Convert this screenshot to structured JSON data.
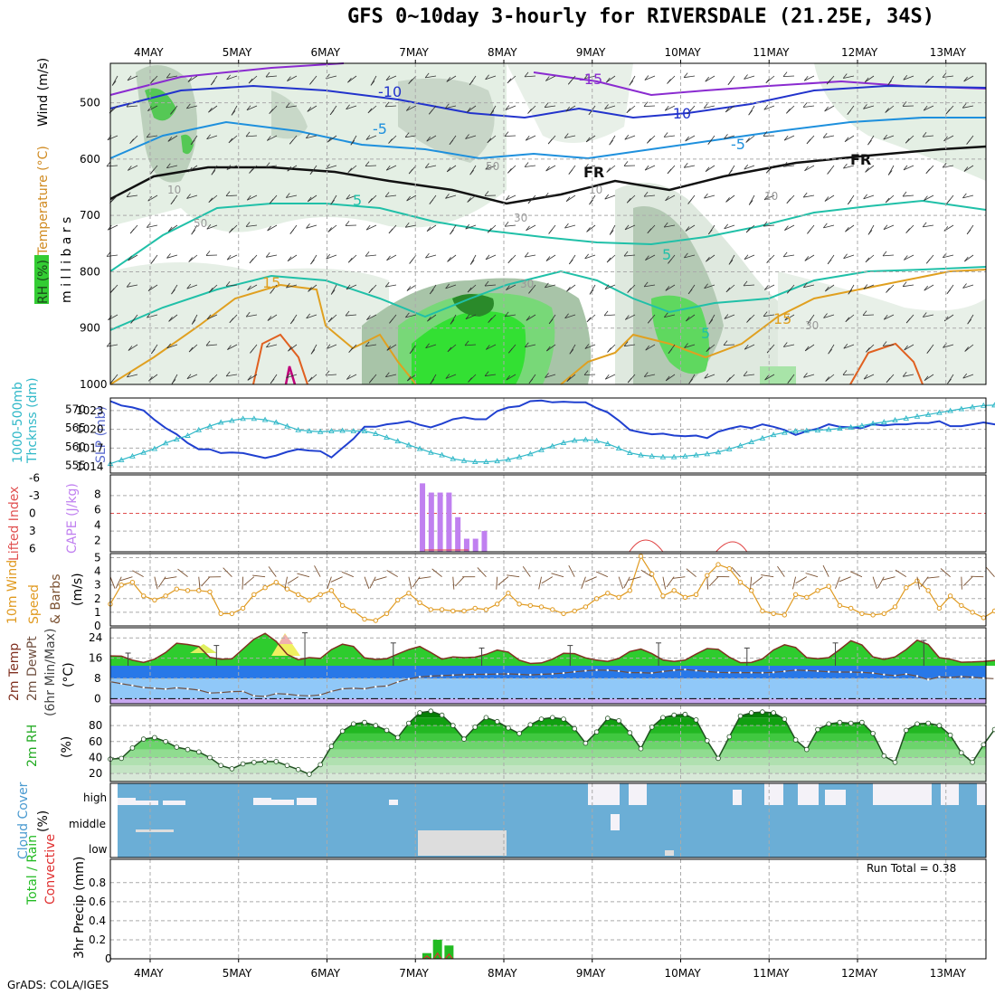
{
  "title": "GFS 0~10day 3-hourly for RIVERSDALE (21.25E, 34S)",
  "footer": "GrADS: COLA/IGES",
  "chart_data": {
    "type": "meteogram",
    "x_dates": [
      "4MAY",
      "5MAY",
      "6MAY",
      "7MAY",
      "8MAY",
      "9MAY",
      "10MAY",
      "11MAY",
      "12MAY",
      "13MAY"
    ],
    "panels": {
      "upper_air": {
        "ylabels": [
          "Wind (m/s)",
          "Temperature (°C)",
          "RH (%)",
          "m i l l i b a r s"
        ],
        "yticks": [
          "500",
          "600",
          "700",
          "800",
          "900",
          "1000"
        ],
        "contour_labels": [
          "-15",
          "-10",
          "-5",
          "5",
          "15",
          "-10",
          "-5",
          "5",
          "5",
          "FR",
          "FR",
          "15",
          "50",
          "10",
          "10",
          "50",
          "30",
          "30",
          "30",
          "10"
        ]
      },
      "slp_thickness": {
        "ylabels": [
          "1000-500mb",
          "Thcknss (dm)",
          "SLP (mb)"
        ],
        "yticks_left": [
          "555",
          "560",
          "565",
          "570"
        ],
        "yticks_right": [
          "1014",
          "1017",
          "1020",
          "1023"
        ],
        "slp_mb": [
          1024.5,
          1023.8,
          1023.5,
          1023,
          1021.5,
          1020.2,
          1019.2,
          1017.8,
          1016.8,
          1016.8,
          1016.2,
          1016.3,
          1016.2,
          1015.8,
          1015.4,
          1015.8,
          1016.4,
          1016.8,
          1016.6,
          1016.5,
          1015.5,
          1017,
          1018.5,
          1020.4,
          1020.4,
          1020.8,
          1021,
          1021.3,
          1020.7,
          1020.3,
          1020.9,
          1021.6,
          1021.9,
          1021.6,
          1021.6,
          1022.9,
          1023.5,
          1023.7,
          1024.5,
          1024.6,
          1024.3,
          1024.4,
          1024.3,
          1024.3,
          1023.4,
          1022.7,
          1021.4,
          1019.9,
          1019.5,
          1019.2,
          1019.3,
          1019,
          1018.9,
          1019,
          1018.6,
          1019.6,
          1020.1,
          1020.5,
          1020.2,
          1020.8,
          1020.4,
          1019.9,
          1019.1,
          1019.7,
          1020.1,
          1020.8,
          1020.4,
          1020.3,
          1020.2,
          1020.8,
          1020.6,
          1020.8,
          1020.8,
          1021,
          1021,
          1021.3,
          1020.5,
          1020.5,
          1020.8,
          1021.1,
          1020.8,
          1020.6,
          1020.8
        ],
        "thickness_dm": [
          555.5,
          556.5,
          557.5,
          558.5,
          559.5,
          561,
          562,
          563,
          564.5,
          565.5,
          566.5,
          567,
          567.5,
          567.5,
          567.2,
          566.5,
          565.5,
          564.5,
          564.2,
          564,
          564.2,
          564.3,
          564.2,
          564.2,
          563.5,
          562.5,
          561.5,
          560.5,
          559.5,
          558.5,
          557.8,
          556.8,
          556.3,
          556,
          556,
          556.2,
          556.6,
          557.3,
          558.1,
          559.2,
          560.2,
          561.1,
          561.7,
          561.9,
          561.6,
          560.8,
          559.6,
          558.4,
          557.8,
          557.5,
          557.3,
          557.3,
          557.5,
          557.8,
          558.1,
          558.6,
          559.4,
          560.3,
          561.3,
          562.3,
          563.2,
          563.8,
          564.2,
          564.3,
          564.4,
          564.6,
          564.9,
          565.2,
          565.6,
          566.2,
          566.6,
          567.1,
          567.6,
          568.1,
          568.6,
          569.1,
          569.6,
          570.1,
          570.6,
          571,
          571.1,
          571.1,
          571.2
        ]
      },
      "instability": {
        "ylabels": [
          "Lifted Index",
          "CAPE (J/kg)"
        ],
        "yticks_left": [
          "-6",
          "-3",
          "0",
          "3",
          "6"
        ],
        "yticks_right": [
          "8",
          "6",
          "4",
          "2"
        ],
        "cape_days": [
          7.08,
          7.18,
          7.28,
          7.38,
          7.48,
          7.58,
          7.68,
          7.78
        ],
        "cape_values": [
          9.4,
          8.2,
          8.2,
          8.2,
          5,
          2.2,
          2.2,
          3.2
        ]
      },
      "wind10m": {
        "ylabels": [
          "10m Wind",
          "Speed",
          "& Barbs",
          "(m/s)"
        ],
        "yticks": [
          "0",
          "1",
          "2",
          "3",
          "4",
          "5"
        ],
        "speed": [
          1.6,
          3,
          3.2,
          2.2,
          1.9,
          2.2,
          2.7,
          2.6,
          2.6,
          2.5,
          0.9,
          0.9,
          1.3,
          2.3,
          2.8,
          3.2,
          2.7,
          2.3,
          1.9,
          2.3,
          2.6,
          1.5,
          1.1,
          0.5,
          0.4,
          0.9,
          1.9,
          2.4,
          1.7,
          1.2,
          1.2,
          1.1,
          1.1,
          1.3,
          1.2,
          1.6,
          2.4,
          1.6,
          1.5,
          1.4,
          1.2,
          0.9,
          1.1,
          1.4,
          2,
          2.4,
          2.1,
          2.6,
          5.1,
          3.8,
          2.2,
          2.6,
          2.1,
          2.3,
          3.7,
          4.5,
          4.2,
          3.2,
          2.6,
          1.1,
          0.9,
          0.8,
          2.3,
          2.1,
          2.6,
          2.9,
          1.5,
          1.3,
          0.9,
          0.8,
          0.9,
          1.4,
          2.8,
          3.3,
          2.6,
          1.3,
          2.2,
          1.5,
          1,
          0.6,
          1.1,
          2.8,
          2.3
        ]
      },
      "temp2m": {
        "ylabels": [
          "2m Temp",
          "2m DewPt",
          "(6hr Min/Max)",
          "(°C)"
        ],
        "yticks": [
          "0",
          "8",
          "16",
          "24"
        ],
        "temp": [
          16.9,
          16.8,
          15.2,
          14.3,
          15.6,
          18.2,
          21.9,
          21.4,
          20.6,
          16.3,
          15.6,
          15.7,
          19.6,
          23.5,
          25.8,
          22.6,
          17.5,
          15.4,
          16.2,
          15.9,
          19.4,
          21.5,
          20.6,
          16.1,
          15.5,
          15.8,
          17.6,
          19.4,
          20.6,
          18.2,
          15.6,
          16.5,
          16.2,
          16.4,
          17.5,
          19.2,
          18.4,
          15.2,
          13.9,
          14.1,
          15.6,
          17.9,
          17.8,
          16.1,
          15.2,
          14.7,
          15.9,
          18.6,
          19.6,
          17.8,
          15.3,
          14.7,
          15.2,
          17.6,
          19.8,
          19.5,
          16.4,
          14.2,
          14.3,
          15.7,
          19.2,
          21.3,
          20.2,
          16.2,
          15.8,
          16.2,
          19.4,
          22.9,
          21.2,
          16.5,
          15.5,
          16.5,
          19.4,
          23.1,
          21.4,
          16.2,
          15.6,
          14.4,
          14.5,
          14.7,
          15.1,
          15.3,
          16.1
        ],
        "dewpt": [
          6.7,
          5.9,
          5.2,
          4.4,
          4.1,
          3.8,
          4.3,
          3.9,
          3.4,
          2.2,
          2.4,
          2.8,
          2.9,
          1.1,
          0.9,
          2,
          1.8,
          1.3,
          1.1,
          1.5,
          2.9,
          3.9,
          4.1,
          3.9,
          4.7,
          5,
          6.6,
          7.8,
          8.6,
          8.9,
          9.1,
          9.3,
          9.5,
          9.6,
          9.6,
          9.7,
          9.8,
          9.6,
          9.4,
          9.6,
          9.8,
          10.1,
          10.6,
          11,
          11.3,
          11.2,
          10.9,
          10.3,
          10.3,
          10.1,
          10.7,
          11.2,
          11.5,
          11.1,
          10.7,
          10.4,
          10.3,
          10.3,
          10.3,
          10.2,
          10.4,
          10.8,
          11.3,
          11.1,
          10.9,
          10.6,
          10.5,
          10.5,
          10.4,
          10.1,
          9.5,
          9.1,
          9.7,
          8.9,
          7.5,
          8.6,
          8.4,
          8.7,
          8.5,
          8.1,
          7.9,
          7.6,
          7.1
        ],
        "max_bars": [
          [
            3.75,
            18
          ],
          [
            4.75,
            21
          ],
          [
            5.75,
            26
          ],
          [
            6.75,
            22
          ],
          [
            7.75,
            20
          ],
          [
            8.75,
            21
          ],
          [
            9.75,
            22
          ],
          [
            10.75,
            20
          ],
          [
            11.75,
            22
          ],
          [
            12.75,
            23
          ]
        ]
      },
      "rh2m": {
        "ylabels": [
          "2m RH",
          "(%)"
        ],
        "yticks": [
          "20",
          "40",
          "60",
          "80"
        ],
        "rh": [
          38,
          39,
          52,
          63,
          65,
          60,
          53,
          50,
          47,
          40,
          30,
          26,
          32,
          34,
          35,
          35,
          30,
          25,
          19,
          31,
          54,
          73,
          82,
          84,
          80,
          74,
          65,
          83,
          96,
          98,
          93,
          80,
          63,
          78,
          90,
          85,
          77,
          70,
          81,
          88,
          90,
          88,
          76,
          58,
          72,
          89,
          86,
          71,
          51,
          78,
          90,
          93,
          94,
          87,
          61,
          39,
          66,
          92,
          96,
          97,
          96,
          88,
          62,
          50,
          75,
          82,
          84,
          83,
          84,
          70,
          42,
          34,
          74,
          82,
          83,
          80,
          68,
          46,
          34,
          56,
          75,
          77,
          76
        ]
      },
      "cloud": {
        "ylabels": [
          "Cloud Cover",
          "(%)"
        ],
        "levels": [
          "high",
          "middle",
          "low"
        ]
      },
      "precip": {
        "ylabels": [
          "Total / Rain",
          "Convective",
          "3hr Precip (mm)"
        ],
        "yticks": [
          "0",
          "0.2",
          "0.4",
          "0.6",
          "0.8"
        ],
        "annotation": "Run Total = 0.38",
        "days": [
          7.13,
          7.25,
          7.38
        ],
        "total": [
          0.06,
          0.2,
          0.14
        ],
        "convective": [
          0.03,
          0.06,
          0.05
        ]
      }
    }
  }
}
